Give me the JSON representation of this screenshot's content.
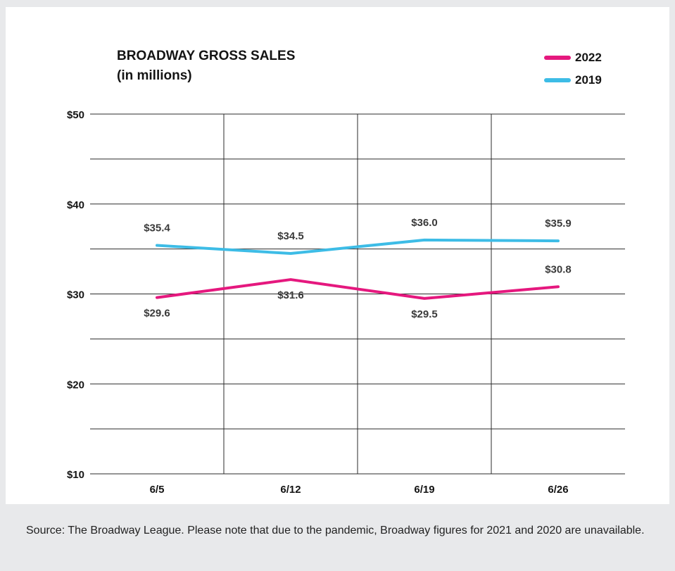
{
  "chart_data": {
    "type": "line",
    "title": "BROADWAY GROSS SALES",
    "subtitle": "(in millions)",
    "categories": [
      "6/5",
      "6/12",
      "6/19",
      "6/26"
    ],
    "ylim": [
      10,
      50
    ],
    "yticks": [
      10,
      20,
      30,
      40,
      50
    ],
    "ytick_labels": [
      "$10",
      "$20",
      "$30",
      "$40",
      "$50"
    ],
    "grid": true,
    "legend_position": "top-right",
    "series": [
      {
        "name": "2022",
        "color": "#e5187e",
        "values": [
          29.6,
          31.6,
          29.5,
          30.8
        ],
        "labels": [
          "$29.6",
          "$31.6",
          "$29.5",
          "$30.8"
        ],
        "label_positions": [
          "below",
          "below",
          "below",
          "above"
        ]
      },
      {
        "name": "2019",
        "color": "#3dbce6",
        "values": [
          35.4,
          34.5,
          36.0,
          35.9
        ],
        "labels": [
          "$35.4",
          "$34.5",
          "$36.0",
          "$35.9"
        ],
        "label_positions": [
          "above",
          "above",
          "above",
          "above"
        ]
      }
    ]
  },
  "footer": {
    "source": "Source: The Broadway League.  Please note that due to the pandemic, Broadway figures for 2021 and 2020 are unavailable."
  }
}
